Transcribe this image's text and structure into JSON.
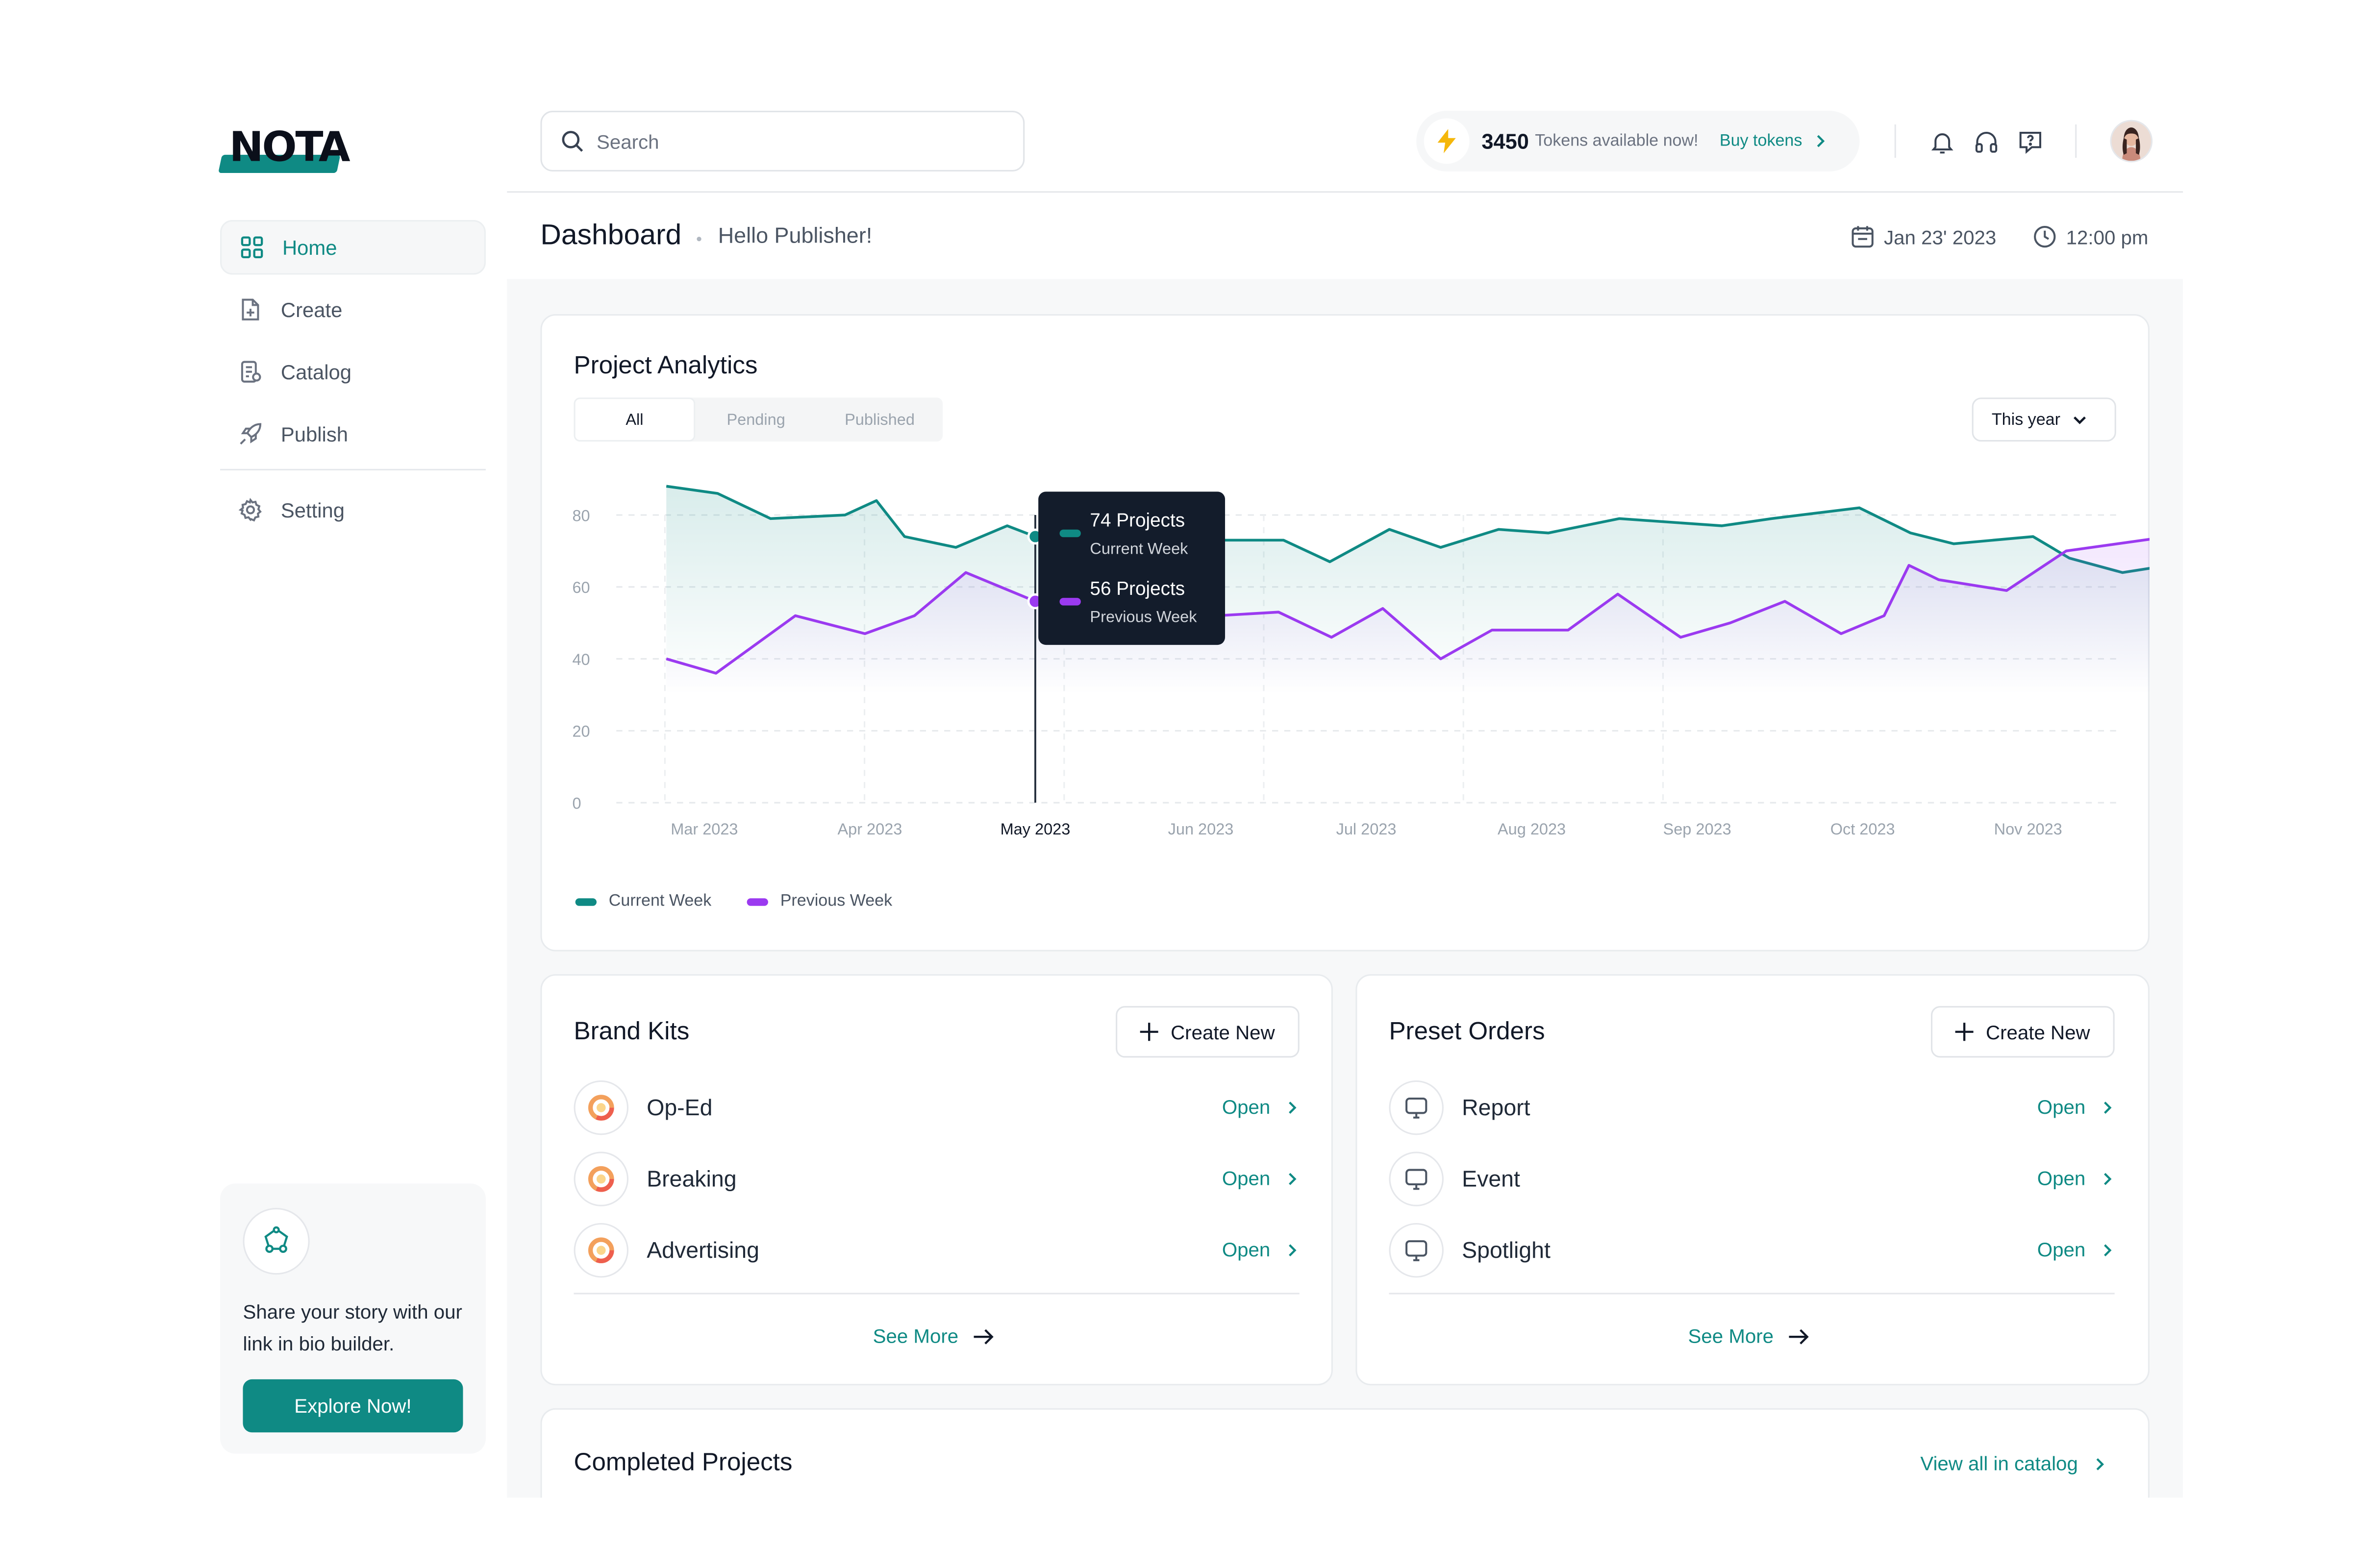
{
  "app": {
    "logo_text": "NOTA"
  },
  "sidebar": {
    "items": [
      {
        "label": "Home",
        "icon": "grid-icon",
        "active": true
      },
      {
        "label": "Create",
        "icon": "file-plus-icon"
      },
      {
        "label": "Catalog",
        "icon": "catalog-icon"
      },
      {
        "label": "Publish",
        "icon": "rocket-icon"
      },
      {
        "label": "Setting",
        "icon": "gear-icon"
      }
    ],
    "promo": {
      "icon": "link-network-icon",
      "text": "Share your story with our link in bio builder.",
      "button": "Explore Now!"
    }
  },
  "topbar": {
    "search_placeholder": "Search",
    "tokens_count": "3450",
    "tokens_text": "Tokens available now!",
    "buy_label": "Buy tokens",
    "icons": [
      "bell-icon",
      "headphones-icon",
      "help-chat-icon"
    ]
  },
  "header": {
    "title": "Dashboard",
    "subtitle": "Hello Publisher!",
    "date": "Jan 23' 2023",
    "time": "12:00 pm"
  },
  "analytics": {
    "title": "Project Analytics",
    "tabs": [
      "All",
      "Pending",
      "Published"
    ],
    "active_tab": "All",
    "range": "This year",
    "tooltip": {
      "current_value": "74 Projects",
      "current_label": "Current Week",
      "previous_value": "56 Projects",
      "previous_label": "Previous Week"
    },
    "legend": [
      "Current Week",
      "Previous Week"
    ]
  },
  "chart_data": {
    "type": "area",
    "categories": [
      "Mar 2023",
      "Apr 2023",
      "May 2023",
      "Jun 2023",
      "Jul 2023",
      "Aug 2023",
      "Sep 2023",
      "Oct 2023",
      "Nov 2023"
    ],
    "highlighted_category": "May 2023",
    "y_ticks": [
      0,
      20,
      40,
      60,
      80
    ],
    "ylim": [
      0,
      90
    ],
    "grid": true,
    "legend_position": "bottom-left",
    "series": [
      {
        "name": "Current Week",
        "color": "#0f8a84",
        "points": [
          [
            -0.23,
            88
          ],
          [
            0.08,
            86
          ],
          [
            0.4,
            79
          ],
          [
            0.85,
            80
          ],
          [
            1.04,
            84
          ],
          [
            1.21,
            74
          ],
          [
            1.52,
            71
          ],
          [
            1.83,
            77
          ],
          [
            2.0,
            74
          ],
          [
            2.3,
            73
          ],
          [
            2.6,
            73
          ],
          [
            3.0,
            73
          ],
          [
            3.5,
            73
          ],
          [
            3.78,
            67
          ],
          [
            4.14,
            76
          ],
          [
            4.45,
            71
          ],
          [
            4.8,
            76
          ],
          [
            5.1,
            75
          ],
          [
            5.53,
            79
          ],
          [
            6.15,
            77
          ],
          [
            6.45,
            79
          ],
          [
            6.98,
            82
          ],
          [
            7.29,
            75
          ],
          [
            7.55,
            72
          ],
          [
            8.03,
            74
          ],
          [
            8.25,
            68
          ],
          [
            8.57,
            64
          ],
          [
            8.85,
            66
          ]
        ]
      },
      {
        "name": "Previous Week",
        "color": "#9b3af0",
        "points": [
          [
            -0.23,
            40
          ],
          [
            0.07,
            36
          ],
          [
            0.55,
            52
          ],
          [
            0.97,
            47
          ],
          [
            1.27,
            52
          ],
          [
            1.58,
            64
          ],
          [
            2.0,
            56
          ],
          [
            2.5,
            53
          ],
          [
            3.1,
            52
          ],
          [
            3.47,
            53
          ],
          [
            3.79,
            46
          ],
          [
            4.1,
            54
          ],
          [
            4.45,
            40
          ],
          [
            4.76,
            48
          ],
          [
            5.22,
            48
          ],
          [
            5.52,
            58
          ],
          [
            5.9,
            46
          ],
          [
            6.2,
            50
          ],
          [
            6.53,
            56
          ],
          [
            6.87,
            47
          ],
          [
            7.13,
            52
          ],
          [
            7.28,
            66
          ],
          [
            7.46,
            62
          ],
          [
            7.87,
            59
          ],
          [
            8.23,
            70
          ],
          [
            8.85,
            74
          ]
        ]
      }
    ]
  },
  "brand_kits": {
    "title": "Brand Kits",
    "create_label": "Create New",
    "items": [
      {
        "label": "Op-Ed",
        "action": "Open"
      },
      {
        "label": "Breaking",
        "action": "Open"
      },
      {
        "label": "Advertising",
        "action": "Open"
      }
    ],
    "see_more": "See More"
  },
  "preset_orders": {
    "title": "Preset Orders",
    "create_label": "Create New",
    "items": [
      {
        "label": "Report",
        "action": "Open"
      },
      {
        "label": "Event",
        "action": "Open"
      },
      {
        "label": "Spotlight",
        "action": "Open"
      }
    ],
    "see_more": "See More"
  },
  "completed": {
    "title": "Completed Projects",
    "view_all": "View all in catalog"
  }
}
